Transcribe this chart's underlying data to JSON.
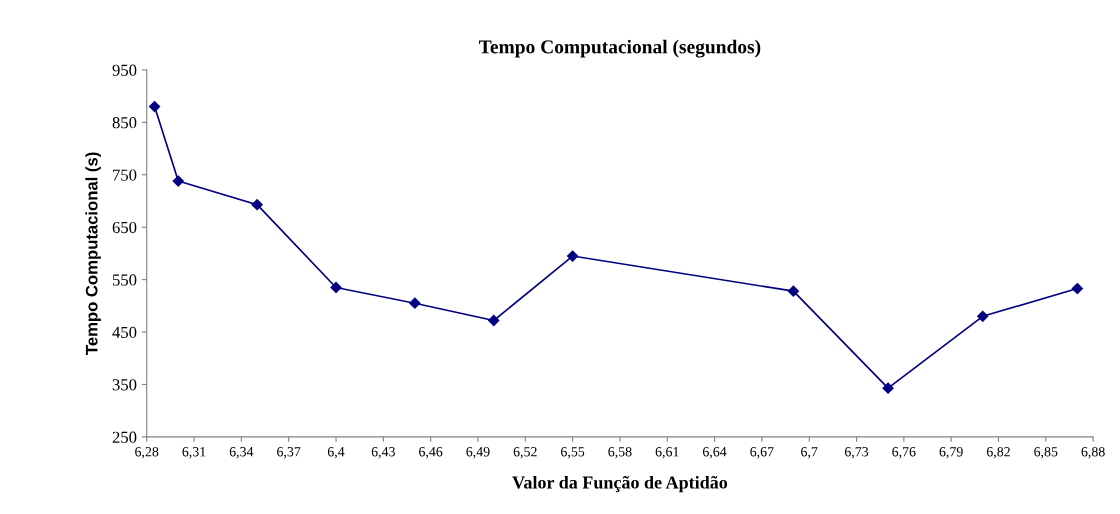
{
  "chart_data": {
    "type": "line",
    "title": "Tempo Computacional (segundos)",
    "xlabel": "Valor da Função de Aptidão",
    "ylabel": "Tempo Computacional (s)",
    "x": [
      6.285,
      6.3,
      6.35,
      6.4,
      6.45,
      6.5,
      6.55,
      6.69,
      6.75,
      6.81,
      6.87
    ],
    "series": [
      {
        "color": "#000080",
        "values": [
          880,
          738,
          693,
          535,
          505,
          472,
          595,
          528,
          343,
          480,
          533
        ]
      }
    ],
    "xlim": [
      6.28,
      6.88
    ],
    "xticks": [
      {
        "value": 6.28,
        "label": "6,28"
      },
      {
        "value": 6.31,
        "label": "6,31"
      },
      {
        "value": 6.34,
        "label": "6,34"
      },
      {
        "value": 6.37,
        "label": "6,37"
      },
      {
        "value": 6.4,
        "label": "6,4"
      },
      {
        "value": 6.43,
        "label": "6,43"
      },
      {
        "value": 6.46,
        "label": "6,46"
      },
      {
        "value": 6.49,
        "label": "6,49"
      },
      {
        "value": 6.52,
        "label": "6,52"
      },
      {
        "value": 6.55,
        "label": "6,55"
      },
      {
        "value": 6.58,
        "label": "6,58"
      },
      {
        "value": 6.61,
        "label": "6,61"
      },
      {
        "value": 6.64,
        "label": "6,64"
      },
      {
        "value": 6.67,
        "label": "6,67"
      },
      {
        "value": 6.7,
        "label": "6,7"
      },
      {
        "value": 6.73,
        "label": "6,73"
      },
      {
        "value": 6.76,
        "label": "6,76"
      },
      {
        "value": 6.79,
        "label": "6,79"
      },
      {
        "value": 6.82,
        "label": "6,82"
      },
      {
        "value": 6.85,
        "label": "6,85"
      },
      {
        "value": 6.88,
        "label": "6,88"
      }
    ],
    "ylim": [
      250,
      950
    ],
    "yticks": [
      250,
      350,
      450,
      550,
      650,
      750,
      850,
      950
    ],
    "grid": false,
    "legend": false,
    "marker": "diamond",
    "line_style": "solid"
  }
}
